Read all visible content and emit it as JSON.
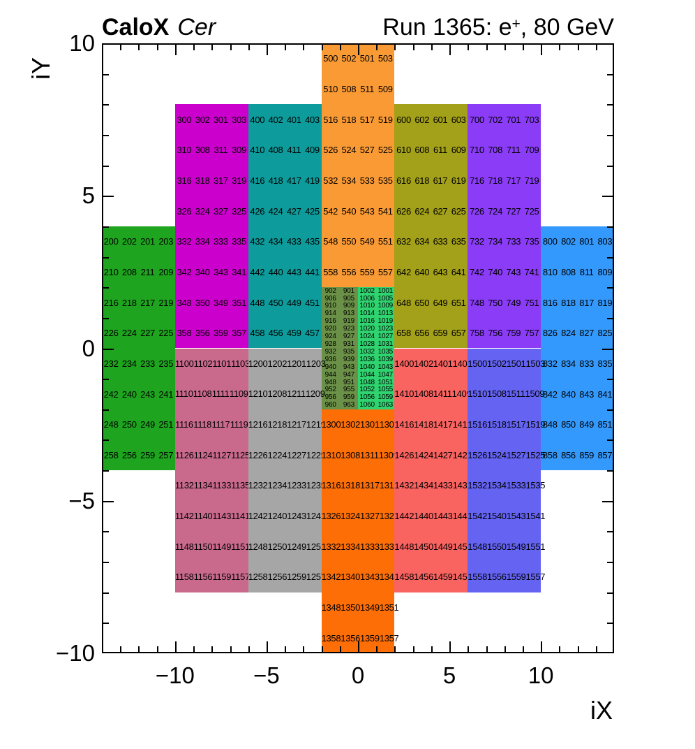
{
  "header": {
    "left_title_bold": "CaloX",
    "left_title_italic": "Cer",
    "right_title_prefix": "Run 1365: e",
    "right_title_sup": "+",
    "right_title_suffix": ", 80 GeV"
  },
  "chart_data": {
    "type": "heatmap",
    "title": "CaloX Cer",
    "subtitle": "Run 1365: e+, 80 GeV",
    "xlabel": "iX",
    "ylabel": "iY",
    "xlim": [
      -14,
      14
    ],
    "ylim": [
      -10,
      10
    ],
    "minor_tick_step": 1,
    "grid": false,
    "x_ticks": [
      {
        "v": -10,
        "label": "−10"
      },
      {
        "v": -5,
        "label": "−5"
      },
      {
        "v": 0,
        "label": "0"
      },
      {
        "v": 5,
        "label": "5"
      },
      {
        "v": 10,
        "label": "10"
      }
    ],
    "y_ticks": [
      {
        "v": 10,
        "label": "10"
      },
      {
        "v": 5,
        "label": "5"
      },
      {
        "v": 0,
        "label": "0"
      },
      {
        "v": -5,
        "label": "−5"
      },
      {
        "v": -10,
        "label": "−10"
      }
    ],
    "blocks": [
      {
        "name": "series-200-green",
        "color": "#1ea41e",
        "x": [
          -14,
          -10
        ],
        "y": [
          -4,
          4
        ],
        "rows": [
          [
            "200",
            "202",
            "201",
            "203"
          ],
          [
            "210",
            "208",
            "211",
            "209"
          ],
          [
            "216",
            "218",
            "217",
            "219"
          ],
          [
            "226",
            "224",
            "227",
            "225"
          ],
          [
            "232",
            "234",
            "233",
            "235"
          ],
          [
            "242",
            "240",
            "243",
            "241"
          ],
          [
            "248",
            "250",
            "249",
            "251"
          ],
          [
            "258",
            "256",
            "259",
            "257"
          ]
        ]
      },
      {
        "name": "series-300-magenta",
        "color": "#cc00cc",
        "x": [
          -10,
          -6
        ],
        "y": [
          0,
          8
        ],
        "rows": [
          [
            "300",
            "302",
            "301",
            "303"
          ],
          [
            "310",
            "308",
            "311",
            "309"
          ],
          [
            "316",
            "318",
            "317",
            "319"
          ],
          [
            "326",
            "324",
            "327",
            "325"
          ],
          [
            "332",
            "334",
            "333",
            "335"
          ],
          [
            "342",
            "340",
            "343",
            "341"
          ],
          [
            "348",
            "350",
            "349",
            "351"
          ],
          [
            "358",
            "356",
            "359",
            "357"
          ]
        ]
      },
      {
        "name": "series-400-teal",
        "color": "#0d9b9b",
        "x": [
          -6,
          -2
        ],
        "y": [
          0,
          8
        ],
        "rows": [
          [
            "400",
            "402",
            "401",
            "403"
          ],
          [
            "410",
            "408",
            "411",
            "409"
          ],
          [
            "416",
            "418",
            "417",
            "419"
          ],
          [
            "426",
            "424",
            "427",
            "425"
          ],
          [
            "432",
            "434",
            "433",
            "435"
          ],
          [
            "442",
            "440",
            "443",
            "441"
          ],
          [
            "448",
            "450",
            "449",
            "451"
          ],
          [
            "458",
            "456",
            "459",
            "457"
          ]
        ]
      },
      {
        "name": "series-500-orange",
        "color": "#fa9a35",
        "x": [
          -2,
          2
        ],
        "y": [
          2,
          10
        ],
        "rows": [
          [
            "500",
            "502",
            "501",
            "503"
          ],
          [
            "510",
            "508",
            "511",
            "509"
          ],
          [
            "516",
            "518",
            "517",
            "519"
          ],
          [
            "526",
            "524",
            "527",
            "525"
          ],
          [
            "532",
            "534",
            "533",
            "535"
          ],
          [
            "542",
            "540",
            "543",
            "541"
          ],
          [
            "548",
            "550",
            "549",
            "551"
          ],
          [
            "558",
            "556",
            "559",
            "557"
          ]
        ]
      },
      {
        "name": "series-600-olive",
        "color": "#a3a019",
        "x": [
          2,
          6
        ],
        "y": [
          0,
          8
        ],
        "rows": [
          [
            "600",
            "602",
            "601",
            "603"
          ],
          [
            "610",
            "608",
            "611",
            "609"
          ],
          [
            "616",
            "618",
            "617",
            "619"
          ],
          [
            "626",
            "624",
            "627",
            "625"
          ],
          [
            "632",
            "634",
            "633",
            "635"
          ],
          [
            "642",
            "640",
            "643",
            "641"
          ],
          [
            "648",
            "650",
            "649",
            "651"
          ],
          [
            "658",
            "656",
            "659",
            "657"
          ]
        ]
      },
      {
        "name": "series-700-purple",
        "color": "#8a3cf7",
        "x": [
          6,
          10
        ],
        "y": [
          0,
          8
        ],
        "rows": [
          [
            "700",
            "702",
            "701",
            "703"
          ],
          [
            "710",
            "708",
            "711",
            "709"
          ],
          [
            "716",
            "718",
            "717",
            "719"
          ],
          [
            "726",
            "724",
            "727",
            "725"
          ],
          [
            "732",
            "734",
            "733",
            "735"
          ],
          [
            "742",
            "740",
            "743",
            "741"
          ],
          [
            "748",
            "750",
            "749",
            "751"
          ],
          [
            "758",
            "756",
            "759",
            "757"
          ]
        ]
      },
      {
        "name": "series-800-blue",
        "color": "#3499fc",
        "x": [
          10,
          14
        ],
        "y": [
          -4,
          4
        ],
        "rows": [
          [
            "800",
            "802",
            "801",
            "803"
          ],
          [
            "810",
            "808",
            "811",
            "809"
          ],
          [
            "816",
            "818",
            "817",
            "819"
          ],
          [
            "826",
            "824",
            "827",
            "825"
          ],
          [
            "832",
            "834",
            "833",
            "835"
          ],
          [
            "842",
            "840",
            "843",
            "841"
          ],
          [
            "848",
            "850",
            "849",
            "851"
          ],
          [
            "858",
            "856",
            "859",
            "857"
          ]
        ]
      },
      {
        "name": "series-900-moss",
        "color": "#6b9148",
        "x": [
          -2,
          0
        ],
        "y": [
          -2,
          2
        ],
        "rows": [
          [
            "902",
            "901"
          ],
          [
            "906",
            "905"
          ],
          [
            "910",
            "909"
          ],
          [
            "914",
            "913"
          ],
          [
            "916",
            "919"
          ],
          [
            "920",
            "923"
          ],
          [
            "924",
            "927"
          ],
          [
            "928",
            "931"
          ],
          [
            "932",
            "935"
          ],
          [
            "936",
            "939"
          ],
          [
            "940",
            "943"
          ],
          [
            "944",
            "947"
          ],
          [
            "948",
            "951"
          ],
          [
            "952",
            "955"
          ],
          [
            "956",
            "959"
          ],
          [
            "960",
            "963"
          ]
        ]
      },
      {
        "name": "series-1000-emerald",
        "color": "#2fd36f",
        "x": [
          0,
          2
        ],
        "y": [
          -2,
          2
        ],
        "rows": [
          [
            "1002",
            "1001"
          ],
          [
            "1006",
            "1005"
          ],
          [
            "1010",
            "1009"
          ],
          [
            "1014",
            "1013"
          ],
          [
            "1016",
            "1019"
          ],
          [
            "1020",
            "1023"
          ],
          [
            "1024",
            "1027"
          ],
          [
            "1028",
            "1031"
          ],
          [
            "1032",
            "1035"
          ],
          [
            "1036",
            "1039"
          ],
          [
            "1040",
            "1043"
          ],
          [
            "1044",
            "1047"
          ],
          [
            "1048",
            "1051"
          ],
          [
            "1052",
            "1055"
          ],
          [
            "1056",
            "1059"
          ],
          [
            "1060",
            "1063"
          ]
        ]
      },
      {
        "name": "series-1100-pink",
        "color": "#c96a8d",
        "x": [
          -10,
          -6
        ],
        "y": [
          -8,
          0
        ],
        "rows": [
          [
            "1100",
            "1102",
            "1101",
            "1103"
          ],
          [
            "1110",
            "1108",
            "1111",
            "1109"
          ],
          [
            "1116",
            "1118",
            "1117",
            "1119"
          ],
          [
            "1126",
            "1124",
            "1127",
            "1125"
          ],
          [
            "1132",
            "1134",
            "1133",
            "1135"
          ],
          [
            "1142",
            "1140",
            "1143",
            "1141"
          ],
          [
            "1148",
            "1150",
            "1149",
            "1151"
          ],
          [
            "1158",
            "1156",
            "1159",
            "1157"
          ]
        ]
      },
      {
        "name": "series-1200-gray",
        "color": "#a6a6a6",
        "x": [
          -6,
          -2
        ],
        "y": [
          -8,
          0
        ],
        "rows": [
          [
            "1200",
            "1202",
            "1201",
            "1203"
          ],
          [
            "1210",
            "1208",
            "1211",
            "1209"
          ],
          [
            "1216",
            "1218",
            "1217",
            "1219"
          ],
          [
            "1226",
            "1224",
            "1227",
            "1225"
          ],
          [
            "1232",
            "1234",
            "1233",
            "1235"
          ],
          [
            "1242",
            "1240",
            "1243",
            "1241"
          ],
          [
            "1248",
            "1250",
            "1249",
            "1251"
          ],
          [
            "1258",
            "1256",
            "1259",
            "1257"
          ]
        ]
      },
      {
        "name": "series-1300-deep-orange",
        "color": "#fd6e07",
        "x": [
          -2,
          2
        ],
        "y": [
          -10,
          -2
        ],
        "rows": [
          [
            "1300",
            "1302",
            "1301",
            "1303"
          ],
          [
            "1310",
            "1308",
            "1311",
            "1309"
          ],
          [
            "1316",
            "1318",
            "1317",
            "1319"
          ],
          [
            "1326",
            "1324",
            "1327",
            "1325"
          ],
          [
            "1332",
            "1334",
            "1333",
            "1335"
          ],
          [
            "1342",
            "1340",
            "1343",
            "1341"
          ],
          [
            "1348",
            "1350",
            "1349",
            "1351"
          ],
          [
            "1358",
            "1356",
            "1359",
            "1357"
          ]
        ]
      },
      {
        "name": "series-1400-red",
        "color": "#f96360",
        "x": [
          2,
          6
        ],
        "y": [
          -8,
          0
        ],
        "rows": [
          [
            "1400",
            "1402",
            "1401",
            "1403"
          ],
          [
            "1410",
            "1408",
            "1411",
            "1409"
          ],
          [
            "1416",
            "1418",
            "1417",
            "1419"
          ],
          [
            "1426",
            "1424",
            "1427",
            "1425"
          ],
          [
            "1432",
            "1434",
            "1433",
            "1435"
          ],
          [
            "1442",
            "1440",
            "1443",
            "1441"
          ],
          [
            "1448",
            "1450",
            "1449",
            "1451"
          ],
          [
            "1458",
            "1456",
            "1459",
            "1457"
          ]
        ]
      },
      {
        "name": "series-1500-violet",
        "color": "#6463f2",
        "x": [
          6,
          10
        ],
        "y": [
          -8,
          0
        ],
        "rows": [
          [
            "1500",
            "1502",
            "1501",
            "1503"
          ],
          [
            "1510",
            "1508",
            "1511",
            "1509"
          ],
          [
            "1516",
            "1518",
            "1517",
            "1519"
          ],
          [
            "1526",
            "1524",
            "1527",
            "1525"
          ],
          [
            "1532",
            "1534",
            "1533",
            "1535"
          ],
          [
            "1542",
            "1540",
            "1543",
            "1541"
          ],
          [
            "1548",
            "1550",
            "1549",
            "1551"
          ],
          [
            "1558",
            "1556",
            "1559",
            "1557"
          ]
        ]
      }
    ]
  }
}
